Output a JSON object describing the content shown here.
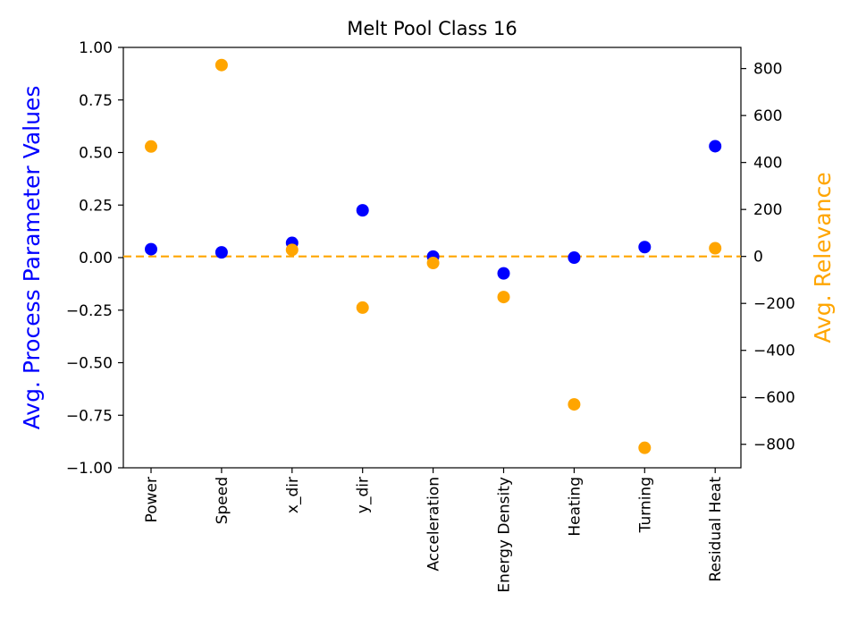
{
  "chart_data": {
    "type": "scatter",
    "title": "Melt Pool Class 16",
    "categories": [
      "Power",
      "Speed",
      "x_dir",
      "y_dir",
      "Acceleration",
      "Energy Density",
      "Heating",
      "Turning",
      "Residual Heat"
    ],
    "left_axis": {
      "label": "Avg. Process Parameter Values",
      "color": "#0000ff",
      "ylim": [
        -1.0,
        1.0
      ],
      "ticks": [
        -1.0,
        -0.75,
        -0.5,
        -0.25,
        0.0,
        0.25,
        0.5,
        0.75,
        1.0
      ],
      "tick_labels": [
        "−1.00",
        "−0.75",
        "−0.50",
        "−0.25",
        "0.00",
        "0.25",
        "0.50",
        "0.75",
        "1.00"
      ]
    },
    "right_axis": {
      "label": "Avg. Relevance",
      "color": "#ffa500",
      "ylim": [
        -900,
        890
      ],
      "ticks": [
        -800,
        -600,
        -400,
        -200,
        0,
        200,
        400,
        600,
        800
      ],
      "tick_labels": [
        "−800",
        "−600",
        "−400",
        "−200",
        "0",
        "200",
        "400",
        "600",
        "800"
      ]
    },
    "series": [
      {
        "name": "Avg. Process Parameter Values",
        "axis": "left",
        "color": "#0000ff",
        "values": [
          0.04,
          0.025,
          0.07,
          0.225,
          0.005,
          -0.075,
          0.0,
          0.05,
          0.53
        ]
      },
      {
        "name": "Avg. Relevance",
        "axis": "right",
        "color": "#ffa500",
        "values": [
          468,
          815,
          28,
          -218,
          -28,
          -173,
          -630,
          -815,
          35
        ]
      }
    ],
    "reference_line": {
      "axis": "right",
      "value": 0,
      "style": "dashed",
      "color": "#ffa500"
    },
    "grid": false
  }
}
